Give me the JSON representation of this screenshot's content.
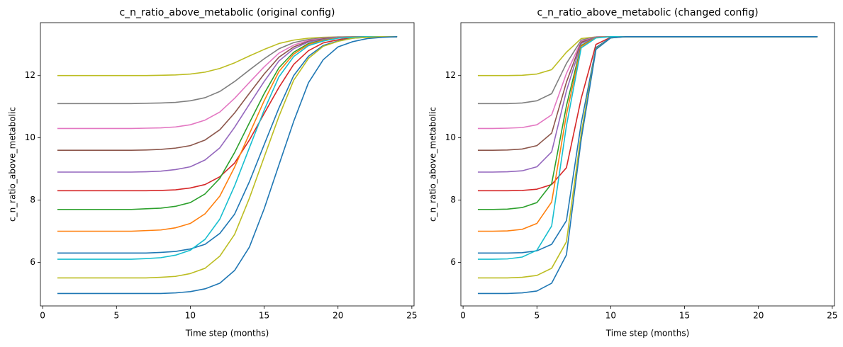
{
  "chart_data": [
    {
      "type": "line",
      "title": "c_n_ratio_above_metabolic (original config)",
      "xlabel": "Time step (months)",
      "ylabel": "c_n_ratio_above_metabolic",
      "x": [
        1,
        2,
        3,
        4,
        5,
        6,
        7,
        8,
        9,
        10,
        11,
        12,
        13,
        14,
        15,
        16,
        17,
        18,
        19,
        20,
        21,
        22,
        23,
        24
      ],
      "xlim": [
        -0.15,
        25.15
      ],
      "ylim": [
        4.6,
        13.7
      ],
      "xticks": [
        0,
        5,
        10,
        15,
        20,
        25
      ],
      "yticks": [
        6,
        8,
        10,
        12
      ],
      "series": [
        {
          "color": "#bcbd22",
          "values": [
            12.0,
            12.0,
            12.0,
            12.0,
            12.0,
            12.0,
            12.0,
            12.01,
            12.02,
            12.05,
            12.11,
            12.23,
            12.41,
            12.63,
            12.84,
            13.03,
            13.14,
            13.2,
            13.23,
            13.24,
            13.25,
            13.25,
            13.25,
            13.25
          ]
        },
        {
          "color": "#7f7f7f",
          "values": [
            11.1,
            11.1,
            11.1,
            11.1,
            11.1,
            11.1,
            11.11,
            11.12,
            11.14,
            11.19,
            11.29,
            11.49,
            11.81,
            12.18,
            12.54,
            12.86,
            13.06,
            13.16,
            13.21,
            13.24,
            13.24,
            13.25,
            13.25,
            13.25
          ]
        },
        {
          "color": "#e377c2",
          "values": [
            10.3,
            10.3,
            10.3,
            10.3,
            10.3,
            10.3,
            10.31,
            10.32,
            10.35,
            10.42,
            10.57,
            10.83,
            11.27,
            11.78,
            12.28,
            12.72,
            12.98,
            13.13,
            13.19,
            13.23,
            13.24,
            13.25,
            13.25,
            13.25
          ]
        },
        {
          "color": "#8c564b",
          "values": [
            9.6,
            9.6,
            9.6,
            9.6,
            9.6,
            9.6,
            9.61,
            9.63,
            9.67,
            9.75,
            9.93,
            10.26,
            10.8,
            11.43,
            12.05,
            12.59,
            12.92,
            13.1,
            13.18,
            13.22,
            13.24,
            13.25,
            13.25,
            13.25
          ]
        },
        {
          "color": "#9467bd",
          "values": [
            8.9,
            8.9,
            8.9,
            8.9,
            8.9,
            8.9,
            8.91,
            8.93,
            8.98,
            9.07,
            9.29,
            9.68,
            10.34,
            11.08,
            11.81,
            12.47,
            12.86,
            13.08,
            13.16,
            13.22,
            13.24,
            13.25,
            13.25,
            13.25
          ]
        },
        {
          "color": "#d62728",
          "values": [
            8.3,
            8.3,
            8.3,
            8.3,
            8.3,
            8.3,
            8.3,
            8.31,
            8.33,
            8.39,
            8.5,
            8.75,
            9.19,
            9.93,
            10.78,
            11.62,
            12.36,
            12.8,
            13.05,
            13.15,
            13.22,
            13.24,
            13.25,
            13.25
          ]
        },
        {
          "color": "#2ca02c",
          "values": [
            7.7,
            7.7,
            7.7,
            7.7,
            7.7,
            7.7,
            7.72,
            7.74,
            7.8,
            7.92,
            8.2,
            8.7,
            9.53,
            10.48,
            11.42,
            12.25,
            12.75,
            13.03,
            13.14,
            13.21,
            13.23,
            13.25,
            13.25,
            13.25
          ]
        },
        {
          "color": "#ff7f0e",
          "values": [
            7.0,
            7.0,
            7.0,
            7.0,
            7.0,
            7.0,
            7.02,
            7.04,
            7.11,
            7.25,
            7.56,
            8.13,
            9.06,
            10.13,
            11.19,
            12.13,
            12.69,
            13.0,
            13.13,
            13.21,
            13.23,
            13.25,
            13.25,
            13.25
          ]
        },
        {
          "color": "#1f77b4",
          "values": [
            6.3,
            6.3,
            6.3,
            6.3,
            6.3,
            6.3,
            6.3,
            6.32,
            6.35,
            6.43,
            6.58,
            6.93,
            7.55,
            8.59,
            9.78,
            10.96,
            12.0,
            12.62,
            12.97,
            13.11,
            13.2,
            13.23,
            13.25,
            13.25
          ]
        },
        {
          "color": "#17becf",
          "values": [
            6.1,
            6.1,
            6.1,
            6.1,
            6.1,
            6.1,
            6.12,
            6.15,
            6.23,
            6.39,
            6.74,
            7.39,
            8.46,
            9.68,
            10.89,
            11.96,
            12.61,
            12.96,
            13.11,
            13.2,
            13.23,
            13.25,
            13.25,
            13.25
          ]
        },
        {
          "color": "#bcbd22",
          "values": [
            5.5,
            5.5,
            5.5,
            5.5,
            5.5,
            5.5,
            5.5,
            5.52,
            5.55,
            5.64,
            5.81,
            6.2,
            6.9,
            8.06,
            9.38,
            10.69,
            11.85,
            12.55,
            12.94,
            13.1,
            13.2,
            13.23,
            13.25,
            13.25
          ]
        },
        {
          "color": "#1f77b4",
          "values": [
            5.0,
            5.0,
            5.0,
            5.0,
            5.0,
            5.0,
            5.0,
            5.0,
            5.02,
            5.06,
            5.15,
            5.33,
            5.74,
            6.49,
            7.72,
            9.13,
            10.53,
            11.77,
            12.51,
            12.92,
            13.09,
            13.19,
            13.23,
            13.25
          ]
        }
      ]
    },
    {
      "type": "line",
      "title": "c_n_ratio_above_metabolic (changed config)",
      "xlabel": "Time step (months)",
      "ylabel": "c_n_ratio_above_metabolic",
      "x": [
        1,
        2,
        3,
        4,
        5,
        6,
        7,
        8,
        9,
        10,
        11,
        12,
        13,
        14,
        15,
        16,
        17,
        18,
        19,
        20,
        21,
        22,
        23,
        24
      ],
      "xlim": [
        -0.15,
        25.15
      ],
      "ylim": [
        4.6,
        13.7
      ],
      "xticks": [
        0,
        5,
        10,
        15,
        20,
        25
      ],
      "yticks": [
        6,
        8,
        10,
        12
      ],
      "series": [
        {
          "color": "#bcbd22",
          "values": [
            12.0,
            12.0,
            12.0,
            12.01,
            12.05,
            12.19,
            12.75,
            13.19,
            13.24,
            13.25,
            13.25,
            13.25,
            13.25,
            13.25,
            13.25,
            13.25,
            13.25,
            13.25,
            13.25,
            13.25,
            13.25,
            13.25,
            13.25,
            13.25
          ]
        },
        {
          "color": "#7f7f7f",
          "values": [
            11.1,
            11.1,
            11.1,
            11.12,
            11.19,
            11.42,
            12.39,
            13.14,
            13.24,
            13.25,
            13.25,
            13.25,
            13.25,
            13.25,
            13.25,
            13.25,
            13.25,
            13.25,
            13.25,
            13.25,
            13.25,
            13.25,
            13.25,
            13.25
          ]
        },
        {
          "color": "#e377c2",
          "values": [
            10.3,
            10.3,
            10.31,
            10.33,
            10.42,
            10.74,
            12.07,
            13.1,
            13.24,
            13.25,
            13.25,
            13.25,
            13.25,
            13.25,
            13.25,
            13.25,
            13.25,
            13.25,
            13.25,
            13.25,
            13.25,
            13.25,
            13.25,
            13.25
          ]
        },
        {
          "color": "#8c564b",
          "values": [
            9.6,
            9.6,
            9.61,
            9.64,
            9.75,
            10.15,
            11.79,
            13.07,
            13.23,
            13.25,
            13.25,
            13.25,
            13.25,
            13.25,
            13.25,
            13.25,
            13.25,
            13.25,
            13.25,
            13.25,
            13.25,
            13.25,
            13.25,
            13.25
          ]
        },
        {
          "color": "#9467bd",
          "values": [
            8.9,
            8.9,
            8.91,
            8.94,
            9.07,
            9.55,
            11.51,
            13.03,
            13.23,
            13.25,
            13.25,
            13.25,
            13.25,
            13.25,
            13.25,
            13.25,
            13.25,
            13.25,
            13.25,
            13.25,
            13.25,
            13.25,
            13.25,
            13.25
          ]
        },
        {
          "color": "#d62728",
          "values": [
            8.3,
            8.3,
            8.3,
            8.31,
            8.35,
            8.5,
            9.04,
            11.27,
            13.0,
            13.23,
            13.25,
            13.25,
            13.25,
            13.25,
            13.25,
            13.25,
            13.25,
            13.25,
            13.25,
            13.25,
            13.25,
            13.25,
            13.25,
            13.25
          ]
        },
        {
          "color": "#2ca02c",
          "values": [
            7.7,
            7.7,
            7.71,
            7.76,
            7.92,
            8.53,
            11.03,
            12.97,
            13.22,
            13.25,
            13.25,
            13.25,
            13.25,
            13.25,
            13.25,
            13.25,
            13.25,
            13.25,
            13.25,
            13.25,
            13.25,
            13.25,
            13.25,
            13.25
          ]
        },
        {
          "color": "#ff7f0e",
          "values": [
            7.0,
            7.0,
            7.01,
            7.06,
            7.25,
            7.94,
            10.75,
            12.94,
            13.22,
            13.25,
            13.25,
            13.25,
            13.25,
            13.25,
            13.25,
            13.25,
            13.25,
            13.25,
            13.25,
            13.25,
            13.25,
            13.25,
            13.25,
            13.25
          ]
        },
        {
          "color": "#1f77b4",
          "values": [
            6.3,
            6.3,
            6.3,
            6.31,
            6.37,
            6.58,
            7.34,
            10.47,
            12.9,
            13.22,
            13.25,
            13.25,
            13.25,
            13.25,
            13.25,
            13.25,
            13.25,
            13.25,
            13.25,
            13.25,
            13.25,
            13.25,
            13.25,
            13.25
          ]
        },
        {
          "color": "#17becf",
          "values": [
            6.1,
            6.1,
            6.11,
            6.17,
            6.39,
            7.17,
            10.39,
            12.89,
            13.21,
            13.25,
            13.25,
            13.25,
            13.25,
            13.25,
            13.25,
            13.25,
            13.25,
            13.25,
            13.25,
            13.25,
            13.25,
            13.25,
            13.25,
            13.25
          ]
        },
        {
          "color": "#bcbd22",
          "values": [
            5.5,
            5.5,
            5.5,
            5.52,
            5.58,
            5.81,
            6.66,
            10.15,
            12.86,
            13.21,
            13.25,
            13.25,
            13.25,
            13.25,
            13.25,
            13.25,
            13.25,
            13.25,
            13.25,
            13.25,
            13.25,
            13.25,
            13.25,
            13.25
          ]
        },
        {
          "color": "#1f77b4",
          "values": [
            5.0,
            5.0,
            5.0,
            5.02,
            5.08,
            5.33,
            6.24,
            9.95,
            12.84,
            13.21,
            13.25,
            13.25,
            13.25,
            13.25,
            13.25,
            13.25,
            13.25,
            13.25,
            13.25,
            13.25,
            13.25,
            13.25,
            13.25,
            13.25
          ]
        }
      ]
    }
  ]
}
